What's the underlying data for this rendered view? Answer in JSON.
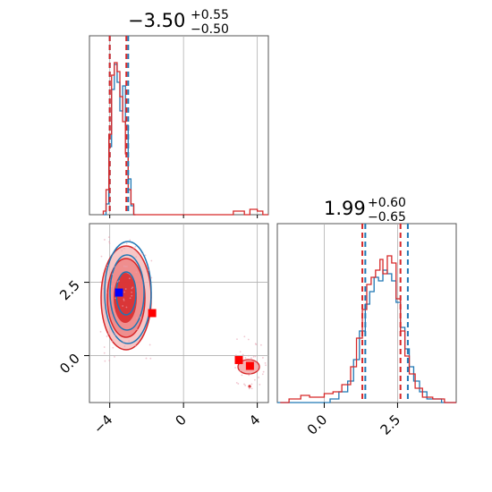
{
  "chart_data": {
    "type": "corner",
    "colors": {
      "blue": "#1f77b4",
      "red": "#d62728",
      "fill_red": "#f2a0a0",
      "grid": "#b0b0b0"
    },
    "panels": {
      "hist_x": {
        "title": {
          "main": "−3.50",
          "sup": "+0.55",
          "sub": "−0.50"
        },
        "xlim": [
          -5.1,
          4.6
        ],
        "quantile_lines_blue": [
          -4.0,
          -3.0
        ],
        "quantile_lines_red": [
          -4.0,
          -3.1
        ],
        "series": [
          {
            "color": "blue",
            "bins": [
              [
                -4.35,
                0.0
              ],
              [
                -4.2,
                0.06
              ],
              [
                -4.05,
                0.38
              ],
              [
                -3.9,
                0.7
              ],
              [
                -3.75,
                0.84
              ],
              [
                -3.6,
                0.74
              ],
              [
                -3.45,
                0.58
              ],
              [
                -3.3,
                0.72
              ],
              [
                -3.15,
                0.5
              ],
              [
                -3.0,
                0.2
              ],
              [
                -2.85,
                0.05
              ],
              [
                -2.7,
                0.0
              ]
            ]
          },
          {
            "color": "red",
            "bins": [
              [
                -4.35,
                0.02
              ],
              [
                -4.2,
                0.14
              ],
              [
                -4.05,
                0.45
              ],
              [
                -3.9,
                0.78
              ],
              [
                -3.75,
                0.85
              ],
              [
                -3.6,
                0.8
              ],
              [
                -3.45,
                0.66
              ],
              [
                -3.3,
                0.52
              ],
              [
                -3.15,
                0.34
              ],
              [
                -3.0,
                0.14
              ],
              [
                -2.85,
                0.06
              ],
              [
                -2.7,
                0.0
              ],
              [
                2.5,
                0.0
              ],
              [
                2.7,
                0.02
              ],
              [
                3.3,
                0.0
              ],
              [
                3.6,
                0.03
              ],
              [
                4.0,
                0.02
              ],
              [
                4.3,
                0.0
              ]
            ]
          }
        ]
      },
      "scatter": {
        "xlim": [
          -5.1,
          4.6
        ],
        "ylim": [
          -1.6,
          4.5
        ],
        "xticks": [
          -4,
          0,
          4
        ],
        "xtick_labels": [
          "−4",
          "0",
          "4"
        ],
        "yticks": [
          0.0,
          2.5
        ],
        "ytick_labels": [
          "0.0",
          "2.5"
        ],
        "markers": [
          {
            "color": "blue",
            "x": -3.5,
            "y": 2.15
          },
          {
            "color": "red",
            "x": -1.7,
            "y": 1.45
          },
          {
            "color": "red",
            "x": 3.0,
            "y": -0.15
          },
          {
            "color": "red",
            "x": 3.6,
            "y": -0.35
          }
        ]
      },
      "hist_y": {
        "title": {
          "main": "1.99",
          "sup": "+0.60",
          "sub": "−0.65"
        },
        "xlim": [
          -1.6,
          4.5
        ],
        "xticks": [
          0.0,
          2.5
        ],
        "xtick_labels": [
          "0.0",
          "2.5"
        ],
        "quantile_lines_blue": [
          1.4,
          2.85
        ],
        "quantile_lines_red": [
          1.3,
          2.6
        ],
        "series": [
          {
            "color": "blue",
            "bins": [
              [
                -1.6,
                0.0
              ],
              [
                0.2,
                0.02
              ],
              [
                0.5,
                0.06
              ],
              [
                0.8,
                0.12
              ],
              [
                1.0,
                0.24
              ],
              [
                1.2,
                0.4
              ],
              [
                1.4,
                0.55
              ],
              [
                1.55,
                0.62
              ],
              [
                1.7,
                0.7
              ],
              [
                1.85,
                0.68
              ],
              [
                2.0,
                0.74
              ],
              [
                2.15,
                0.72
              ],
              [
                2.3,
                0.68
              ],
              [
                2.45,
                0.56
              ],
              [
                2.6,
                0.42
              ],
              [
                2.75,
                0.3
              ],
              [
                2.9,
                0.2
              ],
              [
                3.05,
                0.12
              ],
              [
                3.25,
                0.06
              ],
              [
                3.5,
                0.02
              ],
              [
                4.0,
                0.0
              ]
            ]
          },
          {
            "color": "red",
            "bins": [
              [
                -1.5,
                0.0
              ],
              [
                -1.2,
                0.02
              ],
              [
                -0.8,
                0.04
              ],
              [
                -0.5,
                0.03
              ],
              [
                0.0,
                0.05
              ],
              [
                0.3,
                0.06
              ],
              [
                0.6,
                0.1
              ],
              [
                0.9,
                0.2
              ],
              [
                1.1,
                0.36
              ],
              [
                1.3,
                0.52
              ],
              [
                1.45,
                0.66
              ],
              [
                1.6,
                0.7
              ],
              [
                1.75,
                0.74
              ],
              [
                1.9,
                0.8
              ],
              [
                2.0,
                0.72
              ],
              [
                2.15,
                0.82
              ],
              [
                2.3,
                0.78
              ],
              [
                2.45,
                0.58
              ],
              [
                2.6,
                0.4
              ],
              [
                2.75,
                0.26
              ],
              [
                2.9,
                0.16
              ],
              [
                3.1,
                0.08
              ],
              [
                3.35,
                0.03
              ],
              [
                3.7,
                0.02
              ],
              [
                4.1,
                0.0
              ]
            ]
          }
        ]
      }
    }
  }
}
